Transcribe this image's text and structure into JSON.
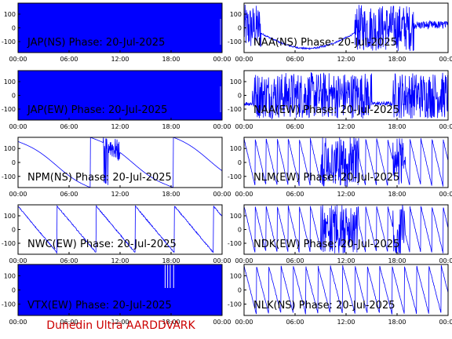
{
  "figure": {
    "credit": "Dunedin Ultra AARDDVARK",
    "colors": {
      "trace": "#0000ff",
      "axes": "#000000",
      "credit": "#cc0000",
      "background": "#ffffff"
    }
  },
  "chart_data": [
    {
      "type": "line",
      "title": "JAP(NS) Phase: 20-Jul-2025",
      "xlabel": "",
      "ylabel": "",
      "x_ticks": [
        "00:00",
        "06:00",
        "12:00",
        "18:00",
        "00:00"
      ],
      "xlim": [
        0,
        24
      ],
      "y_ticks": [
        "100",
        "0",
        "-100"
      ],
      "ylim": [
        -180,
        180
      ],
      "character": "saturated"
    },
    {
      "type": "line",
      "title": "NAA(NS) Phase: 20-Jul-2025",
      "xlabel": "",
      "ylabel": "",
      "x_ticks": [
        "00:00",
        "06:00",
        "12:00",
        "18:00",
        "00:00"
      ],
      "xlim": [
        0,
        24
      ],
      "y_ticks": [
        "100",
        "0",
        "-100"
      ],
      "ylim": [
        -180,
        180
      ],
      "character": "smooth-then-noisy"
    },
    {
      "type": "line",
      "title": "JAP(EW) Phase: 20-Jul-2025",
      "xlabel": "",
      "ylabel": "",
      "x_ticks": [
        "00:00",
        "06:00",
        "12:00",
        "18:00",
        "00:00"
      ],
      "xlim": [
        0,
        24
      ],
      "y_ticks": [
        "100",
        "0",
        "-100"
      ],
      "ylim": [
        -180,
        180
      ],
      "character": "saturated"
    },
    {
      "type": "line",
      "title": "NAA(EW) Phase: 20-Jul-2025",
      "xlabel": "",
      "ylabel": "",
      "x_ticks": [
        "00:00",
        "06:00",
        "12:00",
        "18:00",
        "00:00"
      ],
      "xlim": [
        0,
        24
      ],
      "y_ticks": [
        "100",
        "0",
        "-100"
      ],
      "ylim": [
        -180,
        180
      ],
      "character": "noisy-bands"
    },
    {
      "type": "line",
      "title": "NPM(NS) Phase: 20-Jul-2025",
      "xlabel": "",
      "ylabel": "",
      "x_ticks": [
        "00:00",
        "06:00",
        "12:00",
        "18:00",
        "00:00"
      ],
      "xlim": [
        0,
        24
      ],
      "y_ticks": [
        "100",
        "0",
        "-100"
      ],
      "ylim": [
        -180,
        180
      ],
      "character": "slow-drift"
    },
    {
      "type": "line",
      "title": "NLM(EW) Phase: 20-Jul-2025",
      "xlabel": "",
      "ylabel": "",
      "x_ticks": [
        "00:00",
        "06:00",
        "12:00",
        "18:00",
        "00:00"
      ],
      "xlim": [
        0,
        24
      ],
      "y_ticks": [
        "100",
        "0",
        "-100"
      ],
      "ylim": [
        -180,
        180
      ],
      "character": "sawtooth-noisy"
    },
    {
      "type": "line",
      "title": "NWC(EW) Phase: 20-Jul-2025",
      "xlabel": "",
      "ylabel": "",
      "x_ticks": [
        "00:00",
        "06:00",
        "12:00",
        "18:00",
        "00:00"
      ],
      "xlim": [
        0,
        24
      ],
      "y_ticks": [
        "100",
        "0",
        "-100"
      ],
      "ylim": [
        -180,
        180
      ],
      "character": "slow-sawtooth"
    },
    {
      "type": "line",
      "title": "NDK(EW) Phase: 20-Jul-2025",
      "xlabel": "",
      "ylabel": "",
      "x_ticks": [
        "00:00",
        "06:00",
        "12:00",
        "18:00",
        "00:00"
      ],
      "xlim": [
        0,
        24
      ],
      "y_ticks": [
        "100",
        "0",
        "-100"
      ],
      "ylim": [
        -180,
        180
      ],
      "character": "sawtooth-noisy"
    },
    {
      "type": "line",
      "title": "VTX(EW) Phase: 20-Jul-2025",
      "xlabel": "",
      "ylabel": "",
      "x_ticks": [
        "00:00",
        "06:00",
        "12:00",
        "18:00",
        "00:00"
      ],
      "xlim": [
        0,
        24
      ],
      "y_ticks": [
        "100",
        "0",
        "-100"
      ],
      "ylim": [
        -180,
        180
      ],
      "character": "saturated-gaps"
    },
    {
      "type": "line",
      "title": "NLK(NS) Phase: 20-Jul-2025",
      "xlabel": "",
      "ylabel": "",
      "x_ticks": [
        "00:00",
        "06:00",
        "12:00",
        "18:00",
        "00:00"
      ],
      "xlim": [
        0,
        24
      ],
      "y_ticks": [
        "100",
        "0",
        "-100"
      ],
      "ylim": [
        -180,
        180
      ],
      "character": "fast-sawtooth"
    }
  ]
}
